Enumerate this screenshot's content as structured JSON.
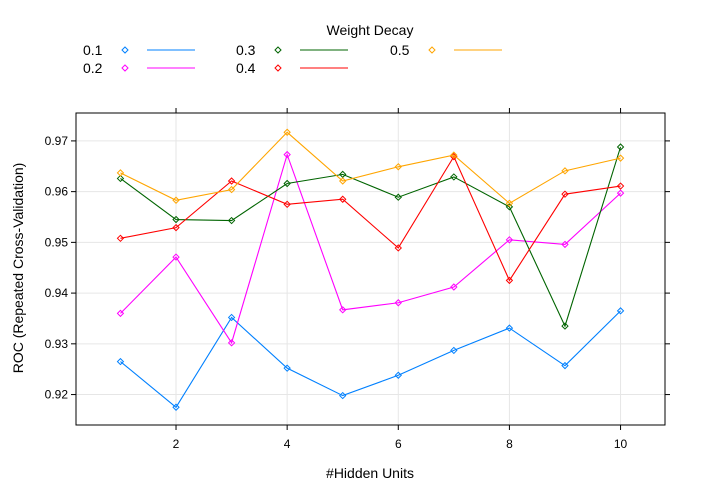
{
  "chart_data": {
    "type": "line",
    "legend": {
      "title": "Weight Decay",
      "placement": "top",
      "columns": 3
    },
    "xlabel": "#Hidden Units",
    "ylabel": "ROC (Repeated Cross-Validation)",
    "x": [
      1,
      2,
      3,
      4,
      5,
      6,
      7,
      8,
      9,
      10
    ],
    "x_ticks": [
      "2",
      "4",
      "6",
      "8",
      "10"
    ],
    "y_ticks": [
      "0.92",
      "0.93",
      "0.94",
      "0.95",
      "0.96",
      "0.97"
    ],
    "xlim": [
      0.2,
      10.8
    ],
    "ylim": [
      0.914,
      0.9755
    ],
    "grid": true,
    "marker": "open-diamond",
    "series": [
      {
        "name": "0.1",
        "color": "#0080ff",
        "values": [
          0.9265,
          0.9175,
          0.9352,
          0.9252,
          0.9198,
          0.9238,
          0.9287,
          0.9331,
          0.9257,
          0.9365
        ]
      },
      {
        "name": "0.2",
        "color": "#ff00ff",
        "values": [
          0.936,
          0.9471,
          0.9302,
          0.9673,
          0.9367,
          0.9381,
          0.9412,
          0.9505,
          0.9496,
          0.9597
        ]
      },
      {
        "name": "0.3",
        "color": "#006400",
        "values": [
          0.9626,
          0.9545,
          0.9543,
          0.9616,
          0.9634,
          0.9589,
          0.9629,
          0.957,
          0.9335,
          0.9688
        ]
      },
      {
        "name": "0.4",
        "color": "#ff0000",
        "values": [
          0.9508,
          0.9529,
          0.9621,
          0.9575,
          0.9585,
          0.9489,
          0.9669,
          0.9425,
          0.9595,
          0.9611
        ]
      },
      {
        "name": "0.5",
        "color": "#ffa500",
        "values": [
          0.9637,
          0.9583,
          0.9604,
          0.9717,
          0.9621,
          0.9649,
          0.9672,
          0.9577,
          0.9641,
          0.9666
        ]
      }
    ]
  }
}
